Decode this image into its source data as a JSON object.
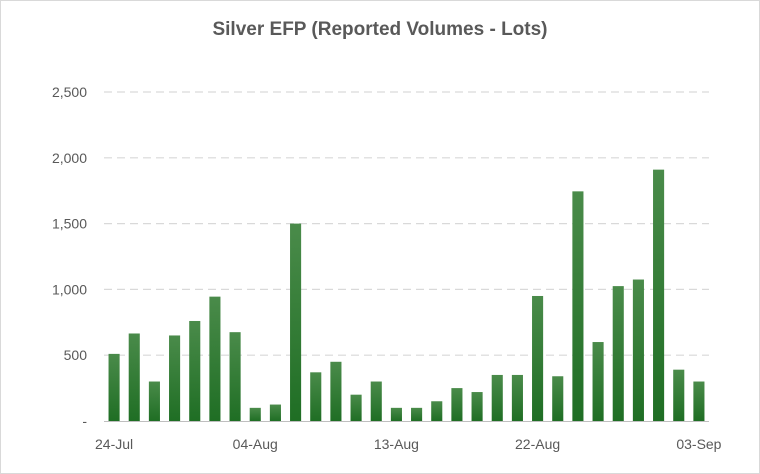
{
  "chart_data": {
    "type": "bar",
    "title": "Silver EFP (Reported Volumes - Lots)",
    "xlabel": "",
    "ylabel": "",
    "ylim": [
      0,
      2500
    ],
    "y_ticks": [
      0,
      500,
      1000,
      1500,
      2000,
      2500
    ],
    "y_tick_labels": [
      "-",
      "500",
      "1,000",
      "1,500",
      "2,000",
      "2,500"
    ],
    "x_tick_labels": [
      {
        "label": "24-Jul",
        "index": 0
      },
      {
        "label": "04-Aug",
        "index": 7
      },
      {
        "label": "13-Aug",
        "index": 14
      },
      {
        "label": "22-Aug",
        "index": 21
      },
      {
        "label": "03-Sep",
        "index": 29
      }
    ],
    "grid": true,
    "legend": "none",
    "colors": {
      "bar_top": "#4a8b4a",
      "bar_bottom": "#1f6e24",
      "grid": "#d9d9d9",
      "axis": "#bfbfbf",
      "text": "#595959"
    },
    "values": [
      510,
      665,
      300,
      650,
      760,
      945,
      675,
      100,
      125,
      1500,
      370,
      450,
      200,
      300,
      100,
      100,
      150,
      250,
      220,
      350,
      350,
      950,
      340,
      1745,
      600,
      1025,
      1075,
      1910,
      390,
      300
    ]
  }
}
